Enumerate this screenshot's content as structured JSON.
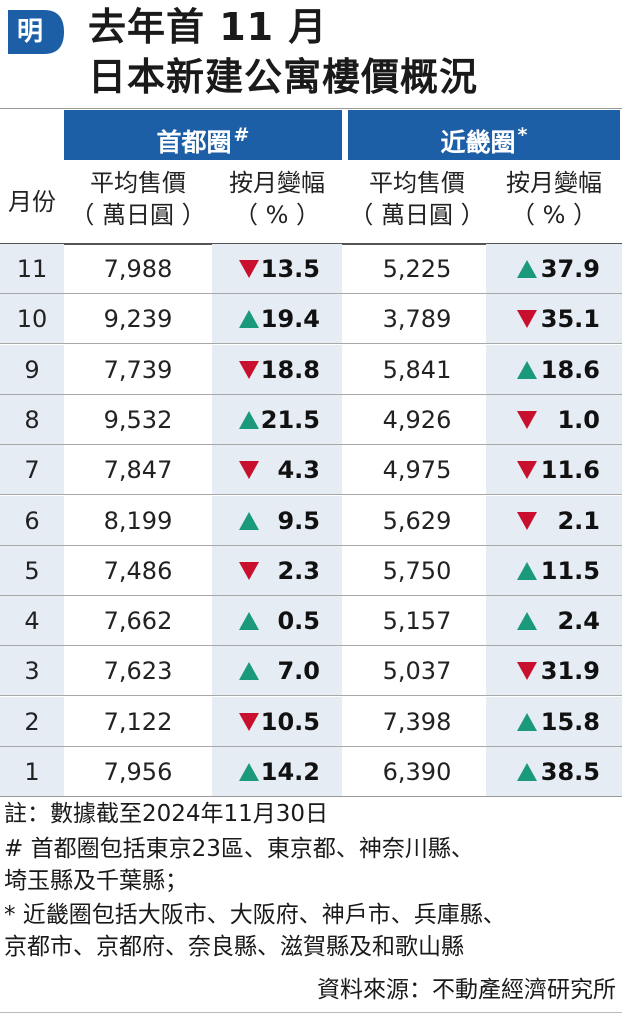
{
  "header": {
    "logo_text": "明",
    "title_line1": "去年首 11 月",
    "title_line2": "日本新建公寓樓價概況"
  },
  "regions": {
    "metro": {
      "label": "首都圈",
      "mark": "#"
    },
    "kinki": {
      "label": "近畿圈",
      "mark": "*"
    }
  },
  "columns": {
    "month": "月份",
    "avg_price_line1": "平均售價",
    "avg_price_line2": "（ 萬日圓 ）",
    "mom_line1": "按月變幅",
    "mom_line2": "（ % ）"
  },
  "colors": {
    "accent_blue": "#1d5fa6",
    "row_shade": "#e6ecf3",
    "up_green": "#1a9a7a",
    "down_red": "#c8102e"
  },
  "rows": [
    {
      "month": "11",
      "metro_price": "7,988",
      "metro_dir": "down",
      "metro_pct": "13.5",
      "kinki_price": "5,225",
      "kinki_dir": "up",
      "kinki_pct": "37.9"
    },
    {
      "month": "10",
      "metro_price": "9,239",
      "metro_dir": "up",
      "metro_pct": "19.4",
      "kinki_price": "3,789",
      "kinki_dir": "down",
      "kinki_pct": "35.1"
    },
    {
      "month": "9",
      "metro_price": "7,739",
      "metro_dir": "down",
      "metro_pct": "18.8",
      "kinki_price": "5,841",
      "kinki_dir": "up",
      "kinki_pct": "18.6"
    },
    {
      "month": "8",
      "metro_price": "9,532",
      "metro_dir": "up",
      "metro_pct": "21.5",
      "kinki_price": "4,926",
      "kinki_dir": "down",
      "kinki_pct": "1.0"
    },
    {
      "month": "7",
      "metro_price": "7,847",
      "metro_dir": "down",
      "metro_pct": "4.3",
      "kinki_price": "4,975",
      "kinki_dir": "down",
      "kinki_pct": "11.6"
    },
    {
      "month": "6",
      "metro_price": "8,199",
      "metro_dir": "up",
      "metro_pct": "9.5",
      "kinki_price": "5,629",
      "kinki_dir": "down",
      "kinki_pct": "2.1"
    },
    {
      "month": "5",
      "metro_price": "7,486",
      "metro_dir": "down",
      "metro_pct": "2.3",
      "kinki_price": "5,750",
      "kinki_dir": "up",
      "kinki_pct": "11.5"
    },
    {
      "month": "4",
      "metro_price": "7,662",
      "metro_dir": "up",
      "metro_pct": "0.5",
      "kinki_price": "5,157",
      "kinki_dir": "up",
      "kinki_pct": "2.4"
    },
    {
      "month": "3",
      "metro_price": "7,623",
      "metro_dir": "up",
      "metro_pct": "7.0",
      "kinki_price": "5,037",
      "kinki_dir": "down",
      "kinki_pct": "31.9"
    },
    {
      "month": "2",
      "metro_price": "7,122",
      "metro_dir": "down",
      "metro_pct": "10.5",
      "kinki_price": "7,398",
      "kinki_dir": "up",
      "kinki_pct": "15.8"
    },
    {
      "month": "1",
      "metro_price": "7,956",
      "metro_dir": "up",
      "metro_pct": "14.2",
      "kinki_price": "6,390",
      "kinki_dir": "up",
      "kinki_pct": "38.5"
    }
  ],
  "notes": {
    "note_date": "註：數據截至2024年11月30日",
    "note_metro_1": "# 首都圈包括東京23區、東京都、神奈川縣、",
    "note_metro_2": "   埼玉縣及千葉縣；",
    "note_kinki_1": "* 近畿圈包括大阪市、大阪府、神戶市、兵庫縣、",
    "note_kinki_2": "   京都市、京都府、奈良縣、滋賀縣及和歌山縣",
    "source": "資料來源：不動產經濟研究所"
  }
}
